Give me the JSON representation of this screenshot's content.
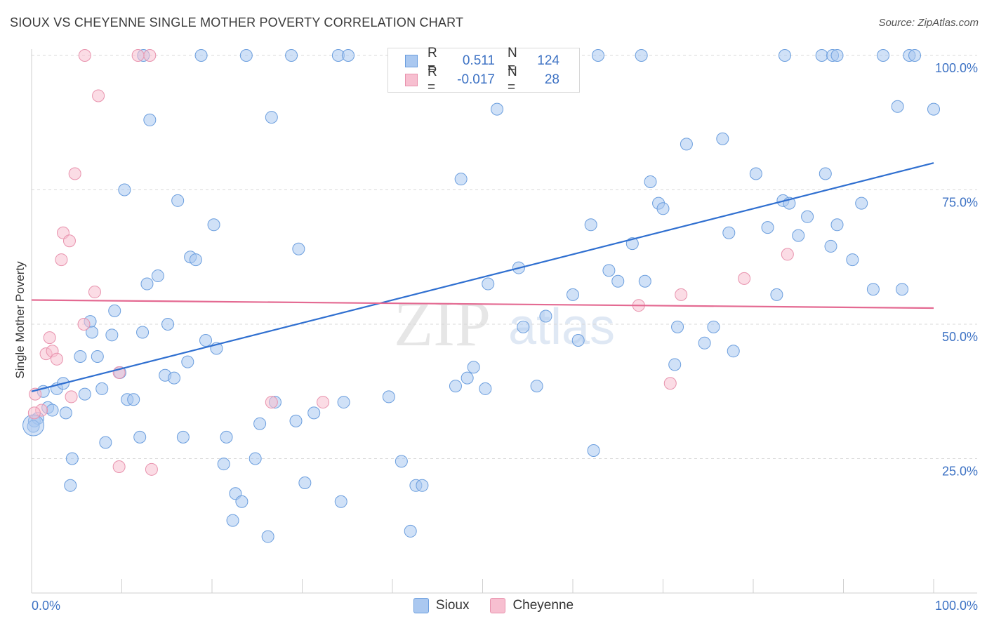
{
  "header": {
    "title": "SIOUX VS CHEYENNE SINGLE MOTHER POVERTY CORRELATION CHART",
    "source": "Source: ZipAtlas.com"
  },
  "watermark": {
    "zip": "ZIP",
    "atlas": "atlas"
  },
  "legend_top": {
    "rows": [
      {
        "r_label": "R =",
        "r_value": "0.511",
        "n_label": "N =",
        "n_value": "124"
      },
      {
        "r_label": "R =",
        "r_value": "-0.017",
        "n_label": "N =",
        "n_value": "28"
      }
    ]
  },
  "legend_bottom": {
    "items": [
      {
        "label": "Sioux"
      },
      {
        "label": "Cheyenne"
      }
    ]
  },
  "colors": {
    "sioux_fill": "#aac8f0",
    "sioux_stroke": "#6b9ede",
    "sioux_line": "#2f6fd0",
    "cheyenne_fill": "#f7bfd0",
    "cheyenne_stroke": "#e892ad",
    "cheyenne_line": "#e46a92",
    "tick_label": "#3d72c4",
    "grid": "#d8d8d8"
  },
  "chart_data": {
    "type": "scatter",
    "title": "SIOUX VS CHEYENNE SINGLE MOTHER POVERTY CORRELATION CHART",
    "xlabel": "",
    "ylabel": "Single Mother Poverty",
    "xlim": [
      0,
      100
    ],
    "ylim": [
      0,
      105
    ],
    "x_tick_labels": [
      "0.0%",
      "100.0%"
    ],
    "y_ticks": [
      25,
      50,
      75,
      100
    ],
    "y_tick_labels": [
      "25.0%",
      "50.0%",
      "75.0%",
      "100.0%"
    ],
    "series": [
      {
        "name": "Sioux",
        "R": 0.511,
        "N": 124,
        "trend": {
          "x": [
            0,
            100
          ],
          "y": [
            37.5,
            80
          ]
        },
        "points": [
          [
            0.3,
            32
          ],
          [
            0.7,
            32.5
          ],
          [
            1.3,
            37.5
          ],
          [
            1.8,
            34.5
          ],
          [
            2.3,
            34
          ],
          [
            2.8,
            38
          ],
          [
            3.5,
            39
          ],
          [
            3.8,
            33.5
          ],
          [
            4.5,
            25
          ],
          [
            4.3,
            20
          ],
          [
            5.4,
            44
          ],
          [
            5.9,
            37
          ],
          [
            6.5,
            50.5
          ],
          [
            6.7,
            48.5
          ],
          [
            7.3,
            44
          ],
          [
            7.8,
            38
          ],
          [
            8.2,
            28
          ],
          [
            8.9,
            48
          ],
          [
            9.2,
            52.5
          ],
          [
            9.8,
            41
          ],
          [
            10.3,
            75
          ],
          [
            10.6,
            36
          ],
          [
            11.3,
            36
          ],
          [
            12.0,
            29
          ],
          [
            12.3,
            48.5
          ],
          [
            12.8,
            57.5
          ],
          [
            13.1,
            88
          ],
          [
            14.0,
            59
          ],
          [
            14.8,
            40.5
          ],
          [
            15.1,
            50
          ],
          [
            15.8,
            40
          ],
          [
            16.2,
            73
          ],
          [
            16.8,
            29
          ],
          [
            17.3,
            43
          ],
          [
            17.6,
            62.5
          ],
          [
            18.2,
            62
          ],
          [
            19.3,
            47
          ],
          [
            20.2,
            68.5
          ],
          [
            20.5,
            45.5
          ],
          [
            21.3,
            24
          ],
          [
            21.6,
            29
          ],
          [
            22.6,
            18.5
          ],
          [
            22.3,
            13.5
          ],
          [
            23.3,
            17
          ],
          [
            24.8,
            25
          ],
          [
            25.3,
            31.5
          ],
          [
            26.2,
            10.5
          ],
          [
            26.6,
            88.5
          ],
          [
            27.0,
            35.5
          ],
          [
            29.3,
            32
          ],
          [
            29.6,
            64
          ],
          [
            30.3,
            20.5
          ],
          [
            31.3,
            33.5
          ],
          [
            34.3,
            17
          ],
          [
            34.6,
            35.5
          ],
          [
            39.6,
            36.5
          ],
          [
            41.0,
            24.5
          ],
          [
            42.0,
            11.5
          ],
          [
            42.6,
            20
          ],
          [
            43.3,
            20
          ],
          [
            47.0,
            38.5
          ],
          [
            47.6,
            77
          ],
          [
            48.3,
            40
          ],
          [
            49.0,
            42
          ],
          [
            50.3,
            38
          ],
          [
            50.6,
            57.5
          ],
          [
            51.6,
            90
          ],
          [
            54.0,
            60.5
          ],
          [
            54.5,
            49.5
          ],
          [
            56.0,
            38.5
          ],
          [
            57.0,
            51.5
          ],
          [
            60.0,
            55.5
          ],
          [
            60.6,
            47
          ],
          [
            62.0,
            68.5
          ],
          [
            62.3,
            26.5
          ],
          [
            64.0,
            60
          ],
          [
            65.0,
            58
          ],
          [
            66.6,
            65
          ],
          [
            68.0,
            58
          ],
          [
            68.6,
            76.5
          ],
          [
            69.5,
            72.5
          ],
          [
            70.0,
            71.5
          ],
          [
            71.3,
            42.5
          ],
          [
            71.6,
            49.5
          ],
          [
            72.6,
            83.5
          ],
          [
            74.6,
            46.5
          ],
          [
            75.6,
            49.5
          ],
          [
            76.6,
            84.5
          ],
          [
            77.3,
            67
          ],
          [
            77.8,
            45
          ],
          [
            80.3,
            78
          ],
          [
            81.6,
            68
          ],
          [
            82.6,
            55.5
          ],
          [
            83.3,
            73
          ],
          [
            84.0,
            72.5
          ],
          [
            85.0,
            66.5
          ],
          [
            86.0,
            70
          ],
          [
            88.0,
            78
          ],
          [
            88.6,
            64.5
          ],
          [
            89.3,
            68.5
          ],
          [
            91.0,
            62
          ],
          [
            92.0,
            72.5
          ],
          [
            93.3,
            56.5
          ],
          [
            96.0,
            90.5
          ],
          [
            96.5,
            56.5
          ],
          [
            100.0,
            90
          ],
          [
            12.4,
            100
          ],
          [
            18.8,
            100
          ],
          [
            23.8,
            100
          ],
          [
            28.8,
            100
          ],
          [
            34.0,
            100
          ],
          [
            35.1,
            100
          ],
          [
            47.6,
            100
          ],
          [
            58.0,
            100
          ],
          [
            62.8,
            100
          ],
          [
            67.6,
            100
          ],
          [
            83.5,
            100
          ],
          [
            87.6,
            100
          ],
          [
            88.8,
            100
          ],
          [
            89.3,
            100
          ],
          [
            94.4,
            100
          ],
          [
            97.3,
            100
          ],
          [
            97.9,
            100
          ],
          [
            0.2,
            31
          ]
        ]
      },
      {
        "name": "Cheyenne",
        "R": -0.017,
        "N": 28,
        "trend": {
          "x": [
            0,
            100
          ],
          "y": [
            54.5,
            53
          ]
        },
        "points": [
          [
            0.4,
            37
          ],
          [
            1.1,
            34
          ],
          [
            1.6,
            44.5
          ],
          [
            2.0,
            47.5
          ],
          [
            2.3,
            45
          ],
          [
            2.8,
            43.5
          ],
          [
            3.3,
            62
          ],
          [
            3.5,
            67
          ],
          [
            4.2,
            65.5
          ],
          [
            4.4,
            36.5
          ],
          [
            4.8,
            78
          ],
          [
            5.8,
            50
          ],
          [
            7.0,
            56
          ],
          [
            7.4,
            92.5
          ],
          [
            9.7,
            41
          ],
          [
            9.7,
            23.5
          ],
          [
            13.3,
            23
          ],
          [
            26.6,
            35.5
          ],
          [
            32.3,
            35.5
          ],
          [
            5.9,
            100
          ],
          [
            11.8,
            100
          ],
          [
            13.1,
            100
          ],
          [
            67.3,
            53.5
          ],
          [
            70.8,
            39
          ],
          [
            72.0,
            55.5
          ],
          [
            79.0,
            58.5
          ],
          [
            83.8,
            63
          ],
          [
            0.3,
            33.5
          ]
        ]
      }
    ]
  }
}
